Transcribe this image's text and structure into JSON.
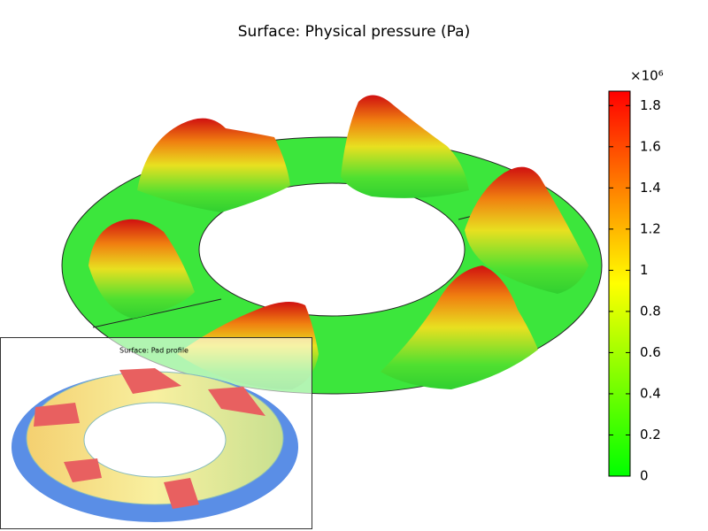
{
  "chart_data": {
    "type": "surface",
    "title": "Surface: Physical pressure (Pa)",
    "colorbar": {
      "scale_label": "×10⁶",
      "ylim": [
        0,
        1.87
      ],
      "yticks": [
        0,
        0.2,
        0.4,
        0.6,
        0.8,
        1,
        1.2,
        1.4,
        1.6,
        1.8
      ],
      "colors": [
        "#00ff00",
        "#ffff00",
        "#ff0000"
      ]
    },
    "inset": {
      "title": "Surface: Pad profile"
    }
  }
}
